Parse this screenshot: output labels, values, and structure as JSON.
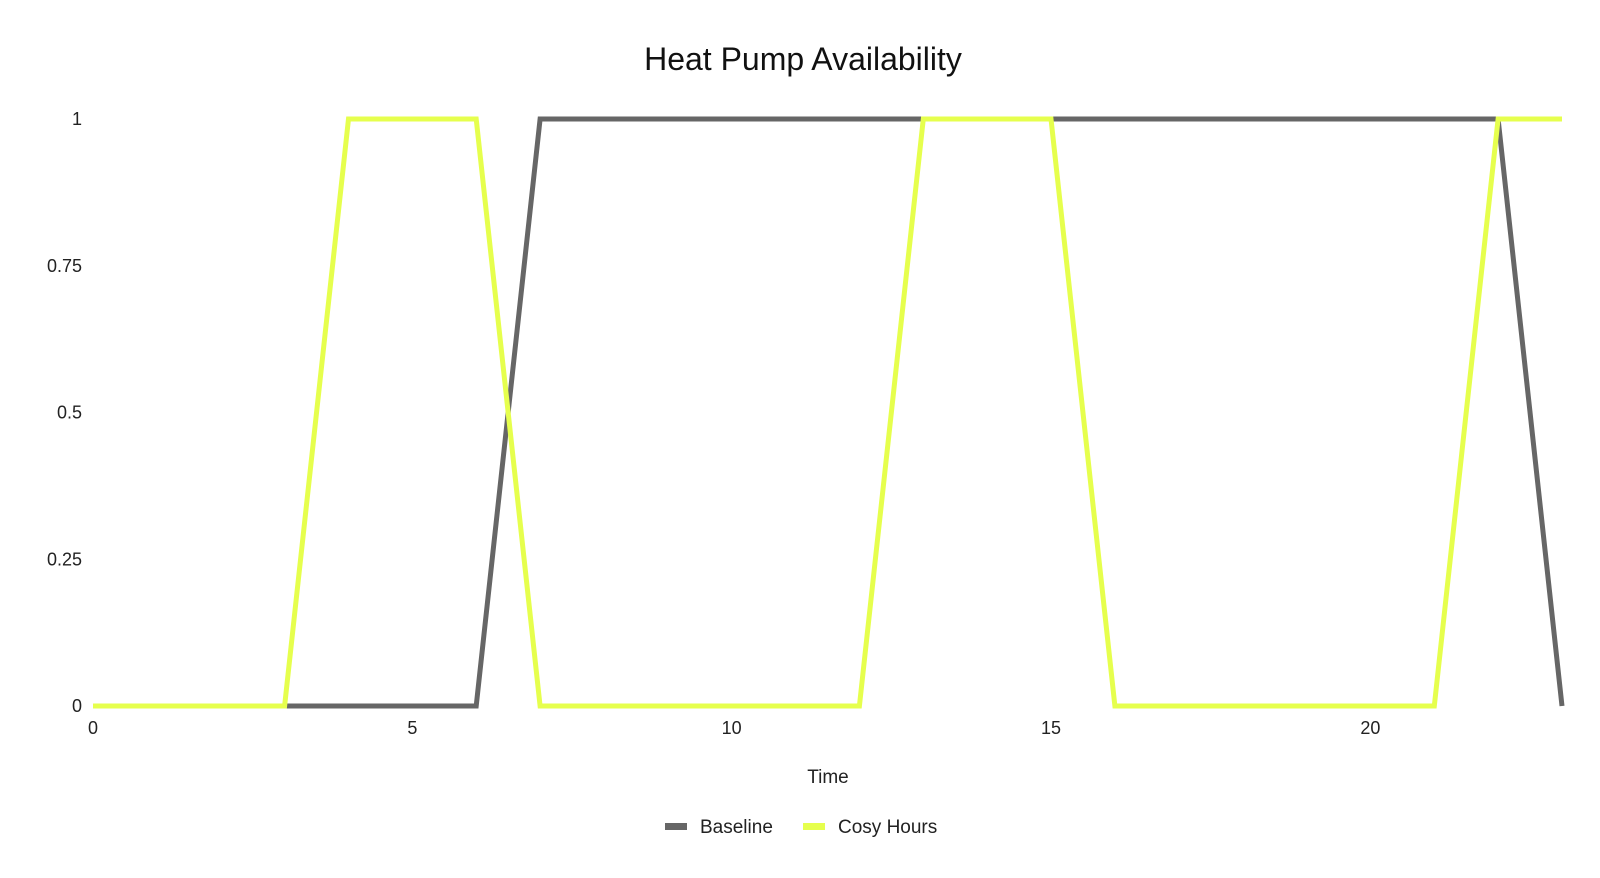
{
  "chart_data": {
    "type": "line",
    "title": "Heat Pump Availability",
    "xlabel": "Time",
    "ylabel": "",
    "xlim": [
      0,
      23
    ],
    "ylim": [
      0,
      1
    ],
    "xticks": [
      0,
      5,
      10,
      15,
      20
    ],
    "yticks": [
      0,
      0.25,
      0.5,
      0.75,
      1
    ],
    "ytick_labels": [
      "0",
      "0.25",
      "0.5",
      "0.75",
      "1"
    ],
    "grid": false,
    "legend_position": "bottom",
    "x": [
      0,
      1,
      2,
      3,
      4,
      5,
      6,
      7,
      8,
      9,
      10,
      11,
      12,
      13,
      14,
      15,
      16,
      17,
      18,
      19,
      20,
      21,
      22,
      23
    ],
    "series": [
      {
        "name": "Baseline",
        "color": "#666666",
        "values": [
          0,
          0,
          0,
          0,
          0,
          0,
          0,
          1,
          1,
          1,
          1,
          1,
          1,
          1,
          1,
          1,
          1,
          1,
          1,
          1,
          1,
          1,
          1,
          0
        ]
      },
      {
        "name": "Cosy Hours",
        "color": "#E6FF4D",
        "values": [
          0,
          0,
          0,
          0,
          1,
          1,
          1,
          0,
          0,
          0,
          0,
          0,
          0,
          1,
          1,
          1,
          0,
          0,
          0,
          0,
          0,
          0,
          1,
          1
        ]
      }
    ]
  }
}
